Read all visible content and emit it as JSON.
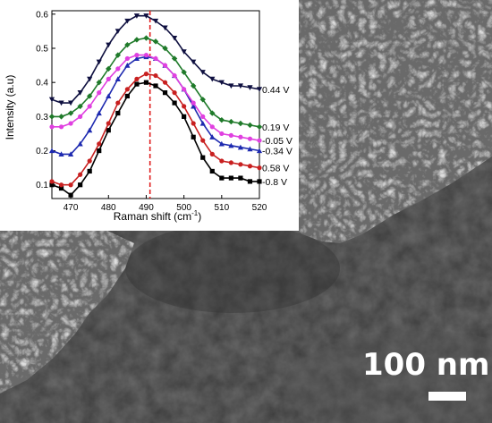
{
  "scalebar": {
    "label": "100 nm"
  },
  "chart_data": {
    "type": "line",
    "xlabel": "Raman shift (cm",
    "xlabel_sup": "-1",
    "xlabel_close": ")",
    "ylabel": "Intensity (a.u)",
    "xlim": [
      465,
      520
    ],
    "ylim": [
      0.06,
      0.61
    ],
    "xticks": [
      470,
      480,
      490,
      500,
      510,
      520
    ],
    "yticks": [
      0.1,
      0.2,
      0.3,
      0.4,
      0.5,
      0.6
    ],
    "xtick_labels": [
      "470",
      "480",
      "490",
      "500",
      "510",
      "520"
    ],
    "ytick_labels": [
      "0.1",
      "0.2",
      "0.3",
      "0.4",
      "0.5",
      "0.6"
    ],
    "reference_line": {
      "x": 491,
      "color": "#e02020",
      "style": "dashed"
    },
    "series": [
      {
        "name": "0.44 V",
        "color": "#0f1040",
        "marker": "triangle-down",
        "x": [
          465,
          467.5,
          470,
          472.5,
          475,
          477.5,
          480,
          482.5,
          485,
          487.5,
          490,
          492.5,
          495,
          497.5,
          500,
          502.5,
          505,
          507.5,
          510,
          512.5,
          515,
          517.5,
          520
        ],
        "y": [
          0.35,
          0.34,
          0.34,
          0.37,
          0.41,
          0.46,
          0.51,
          0.55,
          0.58,
          0.595,
          0.595,
          0.58,
          0.56,
          0.53,
          0.49,
          0.46,
          0.43,
          0.41,
          0.4,
          0.39,
          0.39,
          0.385,
          0.38
        ]
      },
      {
        "name": "0.19 V",
        "color": "#1f7a2a",
        "marker": "diamond",
        "x": [
          465,
          467.5,
          470,
          472.5,
          475,
          477.5,
          480,
          482.5,
          485,
          487.5,
          490,
          492.5,
          495,
          497.5,
          500,
          502.5,
          505,
          507.5,
          510,
          512.5,
          515,
          517.5,
          520
        ],
        "y": [
          0.3,
          0.3,
          0.31,
          0.33,
          0.36,
          0.4,
          0.44,
          0.48,
          0.51,
          0.525,
          0.53,
          0.52,
          0.5,
          0.47,
          0.43,
          0.39,
          0.35,
          0.31,
          0.29,
          0.285,
          0.28,
          0.275,
          0.27
        ]
      },
      {
        "name": "-0.05 V",
        "color": "#e040e0",
        "marker": "circle",
        "x": [
          465,
          467.5,
          470,
          472.5,
          475,
          477.5,
          480,
          482.5,
          485,
          487.5,
          490,
          492.5,
          495,
          497.5,
          500,
          502.5,
          505,
          507.5,
          510,
          512.5,
          515,
          517.5,
          520
        ],
        "y": [
          0.27,
          0.27,
          0.28,
          0.3,
          0.33,
          0.37,
          0.41,
          0.44,
          0.47,
          0.48,
          0.48,
          0.47,
          0.45,
          0.42,
          0.38,
          0.34,
          0.3,
          0.27,
          0.25,
          0.245,
          0.24,
          0.235,
          0.23
        ]
      },
      {
        "name": "-0.34 V",
        "color": "#1e2ab0",
        "marker": "triangle-up",
        "x": [
          465,
          467.5,
          470,
          472.5,
          475,
          477.5,
          480,
          482.5,
          485,
          487.5,
          490,
          492.5,
          495,
          497.5,
          500,
          502.5,
          505,
          507.5,
          510,
          512.5,
          515,
          517.5,
          520
        ],
        "y": [
          0.2,
          0.19,
          0.19,
          0.22,
          0.26,
          0.31,
          0.36,
          0.41,
          0.45,
          0.47,
          0.475,
          0.47,
          0.45,
          0.42,
          0.38,
          0.33,
          0.28,
          0.24,
          0.22,
          0.215,
          0.21,
          0.205,
          0.2
        ]
      },
      {
        "name": "0.58 V",
        "color": "#c82020",
        "marker": "circle",
        "x": [
          465,
          467.5,
          470,
          472.5,
          475,
          477.5,
          480,
          482.5,
          485,
          487.5,
          490,
          492.5,
          495,
          497.5,
          500,
          502.5,
          505,
          507.5,
          510,
          512.5,
          515,
          517.5,
          520
        ],
        "y": [
          0.11,
          0.1,
          0.1,
          0.13,
          0.17,
          0.22,
          0.28,
          0.34,
          0.38,
          0.41,
          0.425,
          0.42,
          0.4,
          0.37,
          0.33,
          0.28,
          0.23,
          0.19,
          0.17,
          0.165,
          0.16,
          0.155,
          0.15
        ]
      },
      {
        "name": "-0.8 V",
        "color": "#000000",
        "marker": "square",
        "x": [
          465,
          467.5,
          470,
          472.5,
          475,
          477.5,
          480,
          482.5,
          485,
          487.5,
          490,
          492.5,
          495,
          497.5,
          500,
          502.5,
          505,
          507.5,
          510,
          512.5,
          515,
          517.5,
          520
        ],
        "y": [
          0.1,
          0.09,
          0.07,
          0.1,
          0.14,
          0.2,
          0.26,
          0.31,
          0.36,
          0.395,
          0.4,
          0.39,
          0.37,
          0.34,
          0.3,
          0.24,
          0.18,
          0.14,
          0.12,
          0.12,
          0.12,
          0.11,
          0.11
        ]
      }
    ]
  }
}
